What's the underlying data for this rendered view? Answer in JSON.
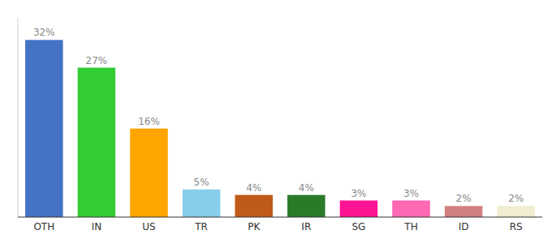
{
  "chart_data": {
    "type": "bar",
    "categories": [
      "OTH",
      "IN",
      "US",
      "TR",
      "PK",
      "IR",
      "SG",
      "TH",
      "ID",
      "RS"
    ],
    "values": [
      32,
      27,
      16,
      5,
      4,
      4,
      3,
      3,
      2,
      2
    ],
    "value_labels": [
      "32%",
      "27%",
      "16%",
      "5%",
      "4%",
      "4%",
      "3%",
      "3%",
      "2%",
      "2%"
    ],
    "colors": [
      "#4472C4",
      "#33CC33",
      "#FFA500",
      "#87CEEB",
      "#C05A1A",
      "#2A7A2A",
      "#FF1493",
      "#FF69B4",
      "#D08080",
      "#F0EDD0"
    ],
    "ylim": [
      0,
      36
    ],
    "data_labels": true,
    "tick_labels": "x",
    "grid": false
  }
}
